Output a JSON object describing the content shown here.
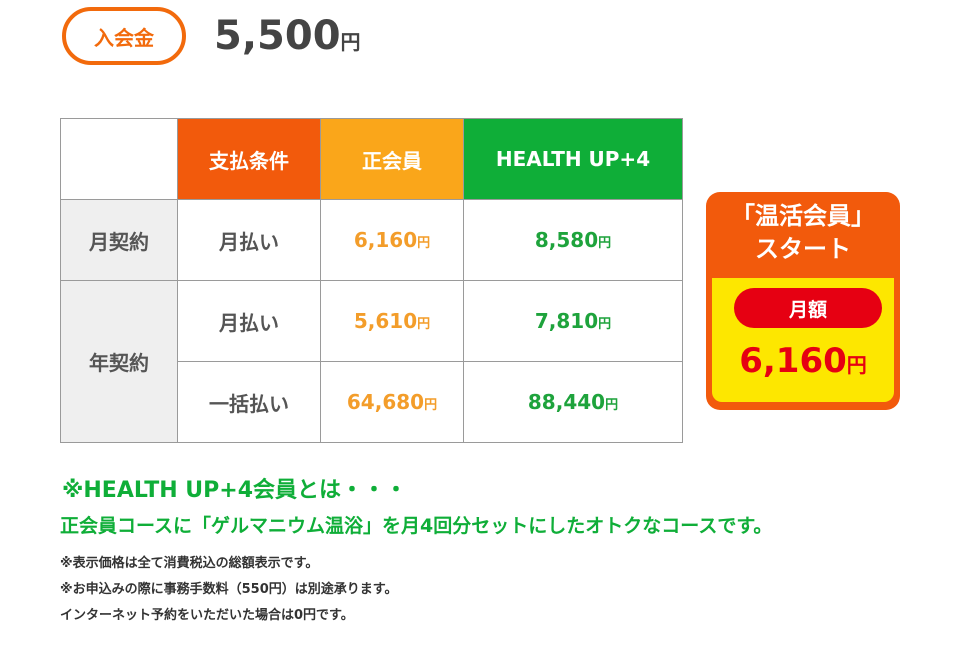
{
  "enrollment": {
    "label": "入会金",
    "amount": "5,500",
    "yen": "円"
  },
  "table": {
    "headers": {
      "payment": "支払条件",
      "regular": "正会員",
      "health_up": "HEALTH UP+4"
    },
    "rows": [
      {
        "contract": "月契約",
        "method": "月払い",
        "regular": "6,160",
        "health_up": "8,580"
      },
      {
        "contract": "年契約",
        "method": "月払い",
        "regular": "5,610",
        "health_up": "7,810"
      },
      {
        "contract": "",
        "method": "一括払い",
        "regular": "64,680",
        "health_up": "88,440"
      }
    ],
    "yen": "円"
  },
  "promo": {
    "title_line1": "「温活会員」",
    "title_line2": "スタート",
    "label": "月額",
    "price": "6,160",
    "yen": "円"
  },
  "notes": {
    "title": "※HEALTH UP+4会員とは・・・",
    "description": "正会員コースに「ゲルマニウム温浴」を月4回分セットにしたオトクなコースです。",
    "small": [
      "※表示価格は全て消費税込の総額表示です。",
      "※お申込みの際に事務手数料（550円）は別途承ります。",
      "インターネット予約をいただいた場合は0円です。"
    ]
  },
  "colors": {
    "orange": "#f25a0c",
    "yellow_orange": "#faa61a",
    "green": "#0fae38",
    "red": "#e60012",
    "yellow": "#fde700"
  }
}
